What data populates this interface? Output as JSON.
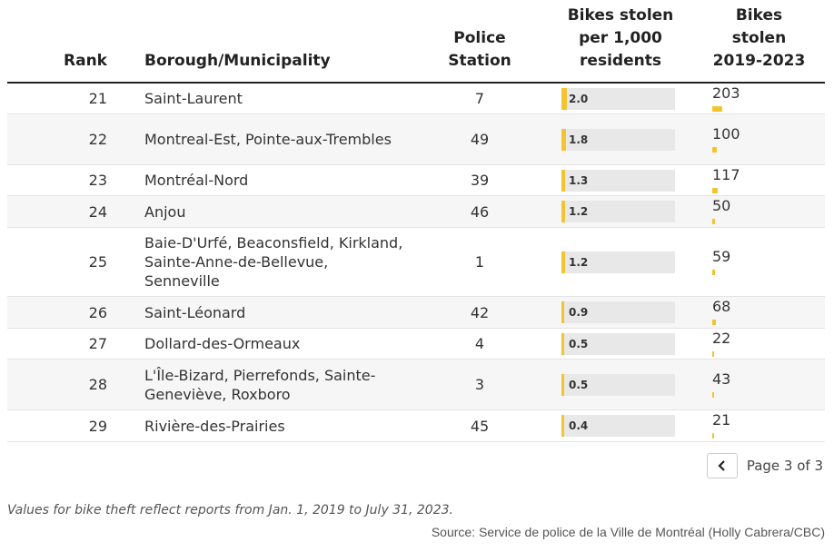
{
  "header": {
    "rank": "Rank",
    "borough": "Borough/Municipality",
    "station_line1": "Police",
    "station_line2": "Station",
    "rate_line1": "Bikes stolen",
    "rate_line2": "per 1,000",
    "rate_line3": "residents",
    "total_line1": "Bikes",
    "total_line2": "stolen",
    "total_line3": "2019-2023"
  },
  "rows": [
    {
      "rank": "21",
      "borough": "Saint-Laurent",
      "station": "7",
      "rate_label": "2.0",
      "rate": 2.0,
      "total_label": "203",
      "total": 203
    },
    {
      "rank": "22",
      "borough": "Montreal-Est, Pointe-aux-Trembles",
      "station": "49",
      "rate_label": "1.8",
      "rate": 1.8,
      "total_label": "100",
      "total": 100
    },
    {
      "rank": "23",
      "borough": "Montréal-Nord",
      "station": "39",
      "rate_label": "1.3",
      "rate": 1.3,
      "total_label": "117",
      "total": 117
    },
    {
      "rank": "24",
      "borough": "Anjou",
      "station": "46",
      "rate_label": "1.2",
      "rate": 1.2,
      "total_label": "50",
      "total": 50
    },
    {
      "rank": "25",
      "borough": "Baie-D'Urfé, Beaconsfield, Kirkland, Sainte-Anne-de-Bellevue, Senneville",
      "station": "1",
      "rate_label": "1.2",
      "rate": 1.2,
      "total_label": "59",
      "total": 59
    },
    {
      "rank": "26",
      "borough": "Saint-Léonard",
      "station": "42",
      "rate_label": "0.9",
      "rate": 0.9,
      "total_label": "68",
      "total": 68
    },
    {
      "rank": "27",
      "borough": "Dollard-des-Ormeaux",
      "station": "4",
      "rate_label": "0.5",
      "rate": 0.5,
      "total_label": "22",
      "total": 22
    },
    {
      "rank": "28",
      "borough": "L'Île-Bizard, Pierrefonds, Sainte-Geneviève, Roxboro",
      "station": "3",
      "rate_label": "0.5",
      "rate": 0.5,
      "total_label": "43",
      "total": 43
    },
    {
      "rank": "29",
      "borough": "Rivière-des-Prairies",
      "station": "45",
      "rate_label": "0.4",
      "rate": 0.4,
      "total_label": "21",
      "total": 21
    }
  ],
  "pagination": {
    "text": "Page 3 of 3",
    "prev_icon": "chevron-left-icon"
  },
  "footer": {
    "note": "Values for bike theft reflect reports from Jan. 1, 2019 to July 31, 2023.",
    "source": "Source: Service de police de la Ville de Montréal (Holly Cabrera/CBC)"
  },
  "colors": {
    "bar": "#f4c430",
    "track": "#e8e8e8",
    "alt_row": "#f6f6f6"
  }
}
